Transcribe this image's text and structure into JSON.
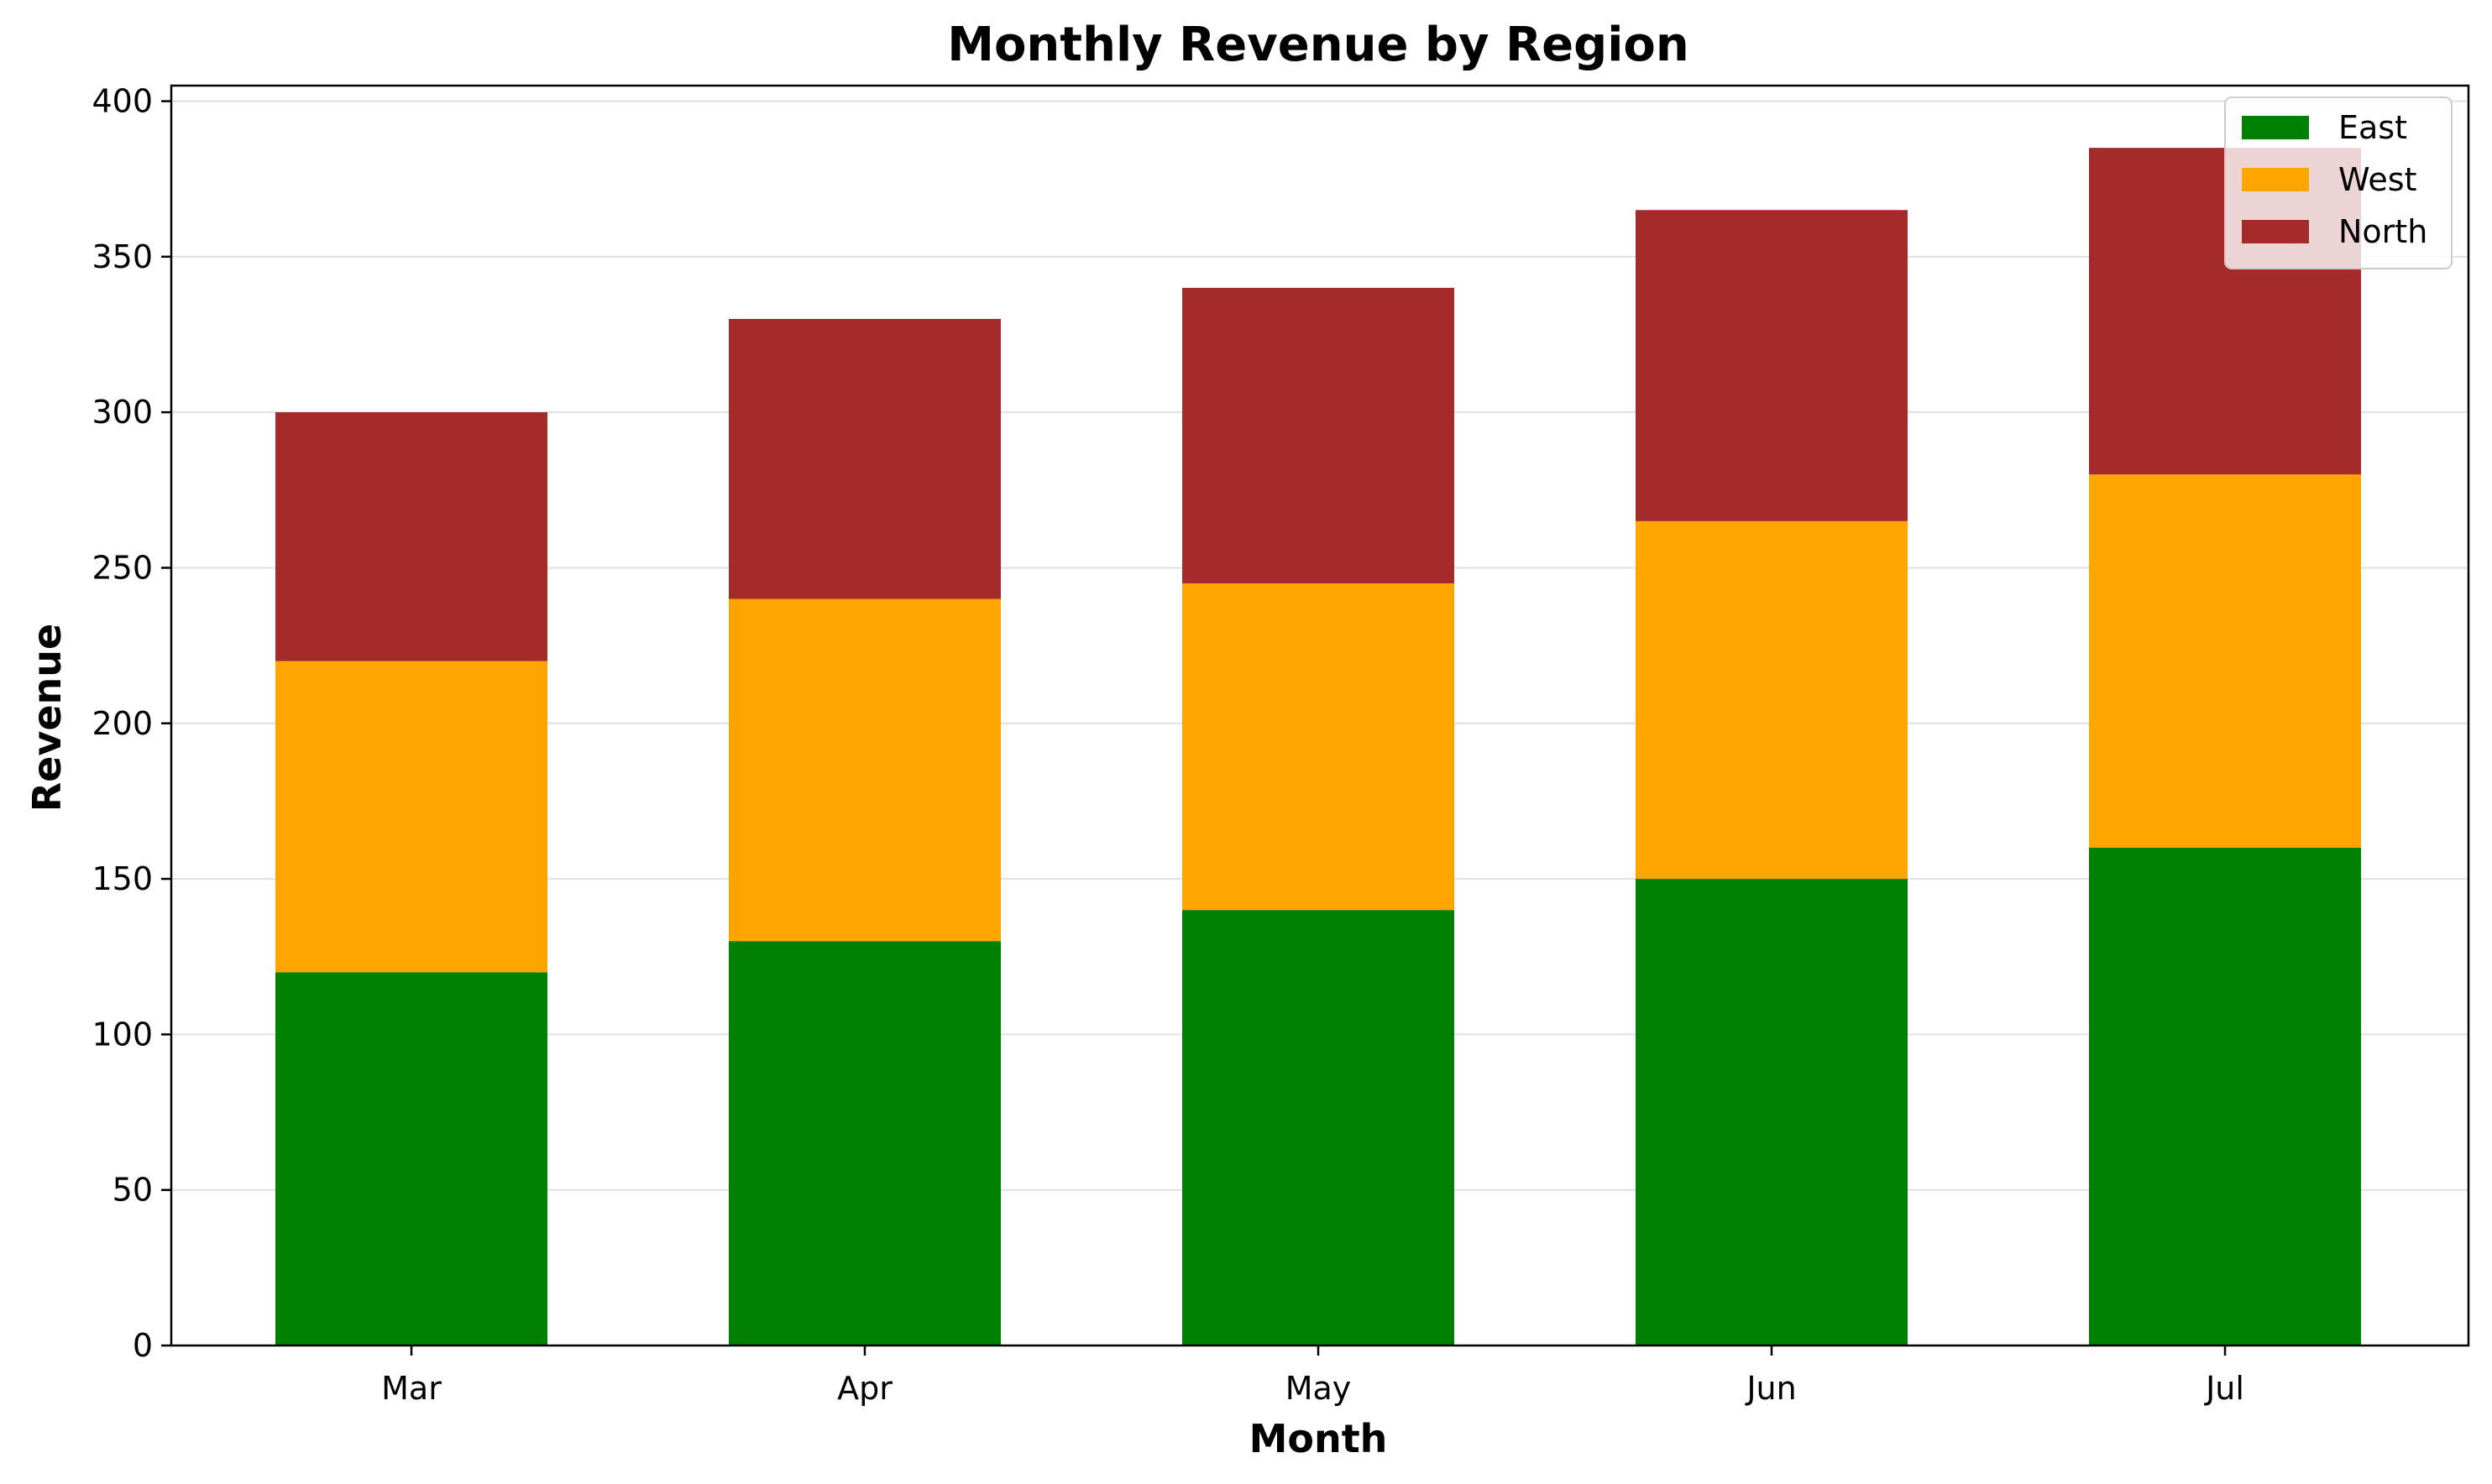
{
  "chart_data": {
    "type": "bar",
    "stacked": true,
    "title": "Monthly Revenue by Region",
    "xlabel": "Month",
    "ylabel": "Revenue",
    "categories": [
      "Mar",
      "Apr",
      "May",
      "Jun",
      "Jul"
    ],
    "series": [
      {
        "name": "East",
        "color": "#008000",
        "values": [
          120,
          130,
          140,
          150,
          160
        ]
      },
      {
        "name": "West",
        "color": "#FFA500",
        "values": [
          100,
          110,
          105,
          115,
          120
        ]
      },
      {
        "name": "North",
        "color": "#A52A2A",
        "values": [
          80,
          90,
          95,
          100,
          105
        ]
      }
    ],
    "ylim": [
      0,
      405
    ],
    "yticks": [
      0,
      50,
      100,
      150,
      200,
      250,
      300,
      350,
      400
    ],
    "grid": "y",
    "legend": "top-right"
  }
}
